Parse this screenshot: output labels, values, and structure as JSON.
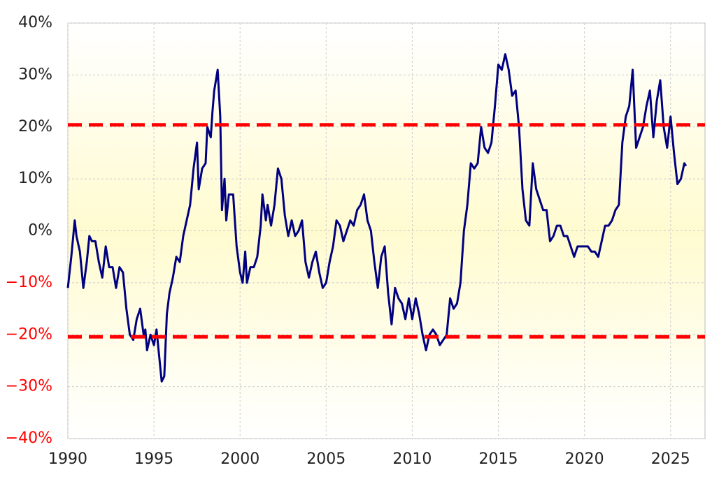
{
  "chart_data": {
    "type": "line",
    "xlim": [
      1990,
      2027
    ],
    "xticks": [
      1990,
      1995,
      2000,
      2005,
      2010,
      2015,
      2020,
      2025
    ],
    "ylim": [
      -40,
      40
    ],
    "yticks": [
      {
        "value": -40,
        "label": "−40%"
      },
      {
        "value": -30,
        "label": "−30%"
      },
      {
        "value": -20,
        "label": "−20%"
      },
      {
        "value": -10,
        "label": "−10%"
      },
      {
        "value": 0,
        "label": "0%"
      },
      {
        "value": 10,
        "label": "10%"
      },
      {
        "value": 20,
        "label": "20%"
      },
      {
        "value": 30,
        "label": "30%"
      },
      {
        "value": 40,
        "label": "40%"
      }
    ],
    "negative_tick_color": "#ff0000",
    "grid": true,
    "reference_lines": [
      20.4,
      -20.4
    ],
    "reference_color": "#ff0000",
    "series": [
      {
        "color": "#000080",
        "x": [
          1990.0,
          1990.2,
          1990.4,
          1990.5,
          1990.7,
          1990.9,
          1991.1,
          1991.25,
          1991.4,
          1991.6,
          1991.8,
          1992.0,
          1992.2,
          1992.4,
          1992.6,
          1992.8,
          1993.0,
          1993.2,
          1993.4,
          1993.6,
          1993.8,
          1994.0,
          1994.2,
          1994.4,
          1994.5,
          1994.6,
          1994.8,
          1995.0,
          1995.15,
          1995.3,
          1995.45,
          1995.6,
          1995.75,
          1995.9,
          1996.1,
          1996.3,
          1996.5,
          1996.7,
          1996.9,
          1997.1,
          1997.3,
          1997.5,
          1997.6,
          1997.8,
          1998.0,
          1998.1,
          1998.3,
          1998.4,
          1998.5,
          1998.7,
          1998.85,
          1998.95,
          1999.1,
          1999.2,
          1999.35,
          1999.6,
          1999.8,
          2000.0,
          2000.15,
          2000.3,
          2000.4,
          2000.6,
          2000.8,
          2001.0,
          2001.2,
          2001.3,
          2001.5,
          2001.6,
          2001.8,
          2002.0,
          2002.2,
          2002.4,
          2002.6,
          2002.8,
          2003.0,
          2003.2,
          2003.4,
          2003.6,
          2003.8,
          2004.0,
          2004.2,
          2004.4,
          2004.6,
          2004.8,
          2005.0,
          2005.2,
          2005.4,
          2005.6,
          2005.8,
          2006.0,
          2006.2,
          2006.4,
          2006.6,
          2006.8,
          2007.0,
          2007.2,
          2007.4,
          2007.6,
          2007.8,
          2008.0,
          2008.2,
          2008.4,
          2008.6,
          2008.8,
          2009.0,
          2009.2,
          2009.4,
          2009.6,
          2009.8,
          2010.0,
          2010.2,
          2010.4,
          2010.6,
          2010.8,
          2011.0,
          2011.2,
          2011.4,
          2011.6,
          2011.8,
          2012.0,
          2012.2,
          2012.4,
          2012.6,
          2012.8,
          2013.0,
          2013.2,
          2013.4,
          2013.6,
          2013.8,
          2014.0,
          2014.2,
          2014.4,
          2014.6,
          2014.8,
          2015.0,
          2015.2,
          2015.4,
          2015.6,
          2015.8,
          2016.0,
          2016.2,
          2016.4,
          2016.6,
          2016.8,
          2017.0,
          2017.2,
          2017.4,
          2017.6,
          2017.8,
          2018.0,
          2018.2,
          2018.4,
          2018.6,
          2018.8,
          2019.0,
          2019.2,
          2019.4,
          2019.6,
          2019.8,
          2020.0,
          2020.2,
          2020.4,
          2020.6,
          2020.8,
          2021.0,
          2021.2,
          2021.4,
          2021.6,
          2021.8,
          2022.0,
          2022.2,
          2022.4,
          2022.6,
          2022.8,
          2023.0,
          2023.2,
          2023.4,
          2023.6,
          2023.8,
          2024.0,
          2024.2,
          2024.4,
          2024.6,
          2024.8,
          2025.0,
          2025.2,
          2025.4,
          2025.6,
          2025.8,
          2025.9
        ],
        "values": [
          -11,
          -5,
          2,
          -1,
          -4,
          -11,
          -6,
          -1,
          -2,
          -2,
          -6,
          -9,
          -3,
          -7,
          -7,
          -11,
          -7,
          -8,
          -15,
          -20,
          -21,
          -17,
          -15,
          -20,
          -19,
          -23,
          -20,
          -22,
          -19,
          -24,
          -29,
          -28,
          -16,
          -12,
          -9,
          -5,
          -6,
          -1,
          2,
          5,
          12,
          17,
          8,
          12,
          13,
          20,
          18,
          23,
          27,
          31,
          22,
          4,
          10,
          2,
          7,
          7,
          -3,
          -8,
          -10,
          -4,
          -10,
          -7,
          -7,
          -5,
          1,
          7,
          2,
          5,
          1,
          5,
          12,
          10,
          3,
          -1,
          2,
          -1,
          0,
          2,
          -6,
          -9,
          -6,
          -4,
          -8,
          -11,
          -10,
          -6,
          -3,
          2,
          1,
          -2,
          0,
          2,
          1,
          4,
          5,
          7,
          2,
          0,
          -6,
          -11,
          -5,
          -3,
          -12,
          -18,
          -11,
          -13,
          -14,
          -17,
          -13,
          -17,
          -13,
          -16,
          -20,
          -23,
          -20,
          -19,
          -20,
          -22,
          -21,
          -20,
          -13,
          -15,
          -14,
          -10,
          0,
          5,
          13,
          12,
          13,
          20,
          16,
          15,
          17,
          24,
          32,
          31,
          34,
          31,
          26,
          27,
          20,
          8,
          2,
          1,
          13,
          8,
          6,
          4,
          4,
          -2,
          -1,
          1,
          1,
          -1,
          -1,
          -3,
          -5,
          -3,
          -3,
          -3,
          -3,
          -4,
          -4,
          -5,
          -2,
          1,
          1,
          2,
          4,
          5,
          17,
          22,
          24,
          31,
          16,
          18,
          20,
          24,
          27,
          18,
          25,
          29,
          20,
          16,
          22,
          15,
          9,
          10,
          13,
          12.5
        ]
      }
    ]
  }
}
